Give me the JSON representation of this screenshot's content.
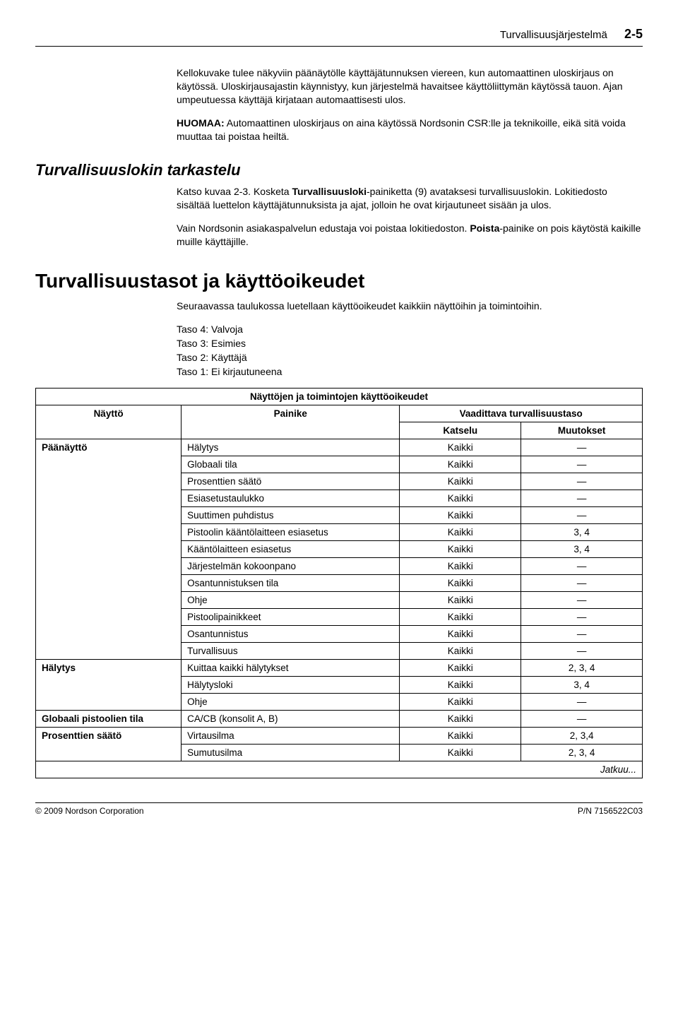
{
  "header": {
    "title": "Turvallisuusjärjestelmä",
    "pagenum": "2-5"
  },
  "intro": {
    "p1": "Kellokuvake tulee näkyviin päänäytölle käyttäjätunnuksen viereen, kun automaattinen uloskirjaus on käytössä. Uloskirjausajastin käynnistyy, kun järjestelmä havaitsee käyttöliittymän käytössä tauon. Ajan umpeutuessa käyttäjä kirjataan automaattisesti ulos.",
    "note_label": "HUOMAA:",
    "note_text": "  Automaattinen uloskirjaus on aina käytössä Nordsonin CSR:lle ja teknikoille, eikä sitä voida muuttaa tai poistaa heiltä."
  },
  "sec_log": {
    "heading": "Turvallisuuslokin tarkastelu",
    "p1a": "Katso kuvaa 2-3.  Kosketa ",
    "p1b": "Turvallisuusloki",
    "p1c": "-painiketta (9) avataksesi turvallisuuslokin. Lokitiedosto sisältää luettelon käyttäjätunnuksista ja ajat, jolloin he ovat kirjautuneet sisään ja ulos.",
    "p2a": "Vain Nordsonin asiakaspalvelun edustaja voi poistaa lokitiedoston. ",
    "p2b": "Poista",
    "p2c": "-painike on pois käytöstä kaikille muille käyttäjille."
  },
  "sec_levels": {
    "heading": "Turvallisuustasot ja käyttöoikeudet",
    "intro": "Seuraavassa taulukossa luetellaan käyttöoikeudet kaikkiin näyttöihin ja toimintoihin.",
    "l4": "Taso 4: Valvoja",
    "l3": "Taso 3: Esimies",
    "l2": "Taso 2: Käyttäjä",
    "l1": "Taso 1: Ei kirjautuneena"
  },
  "table": {
    "title": "Näyttöjen ja toimintojen käyttöoikeudet",
    "group_header": "Vaadittava turvallisuustaso",
    "col_screen": "Näyttö",
    "col_button": "Painike",
    "col_view": "Katselu",
    "col_mod": "Muutokset",
    "rows": [
      {
        "screen": "Päänäyttö",
        "button": "Hälytys",
        "view": "Kaikki",
        "mod": "—"
      },
      {
        "screen": "",
        "button": "Globaali tila",
        "view": "Kaikki",
        "mod": "—"
      },
      {
        "screen": "",
        "button": "Prosenttien säätö",
        "view": "Kaikki",
        "mod": "—"
      },
      {
        "screen": "",
        "button": "Esiasetustaulukko",
        "view": "Kaikki",
        "mod": "—"
      },
      {
        "screen": "",
        "button": "Suuttimen puhdistus",
        "view": "Kaikki",
        "mod": "—"
      },
      {
        "screen": "",
        "button": "Pistoolin kääntölaitteen esiasetus",
        "view": "Kaikki",
        "mod": "3, 4"
      },
      {
        "screen": "",
        "button": "Kääntölaitteen esiasetus",
        "view": "Kaikki",
        "mod": "3, 4"
      },
      {
        "screen": "",
        "button": "Järjestelmän kokoonpano",
        "view": "Kaikki",
        "mod": "—"
      },
      {
        "screen": "",
        "button": "Osantunnistuksen tila",
        "view": "Kaikki",
        "mod": "—"
      },
      {
        "screen": "",
        "button": "Ohje",
        "view": "Kaikki",
        "mod": "—"
      },
      {
        "screen": "",
        "button": "Pistoolipainikkeet",
        "view": "Kaikki",
        "mod": "—"
      },
      {
        "screen": "",
        "button": "Osantunnistus",
        "view": "Kaikki",
        "mod": "—"
      },
      {
        "screen": "",
        "button": "Turvallisuus",
        "view": "Kaikki",
        "mod": "—"
      },
      {
        "screen": "Hälytys",
        "button": "Kuittaa kaikki hälytykset",
        "view": "Kaikki",
        "mod": "2, 3, 4"
      },
      {
        "screen": "",
        "button": "Hälytysloki",
        "view": "Kaikki",
        "mod": "3, 4"
      },
      {
        "screen": "",
        "button": "Ohje",
        "view": "Kaikki",
        "mod": "—"
      },
      {
        "screen": "Globaali pistoolien tila",
        "button": "CA/CB (konsolit A, B)",
        "view": "Kaikki",
        "mod": "—"
      },
      {
        "screen": "Prosenttien säätö",
        "button": "Virtausilma",
        "view": "Kaikki",
        "mod": "2, 3,4"
      },
      {
        "screen": "",
        "button": "Sumutusilma",
        "view": "Kaikki",
        "mod": "2, 3, 4"
      }
    ],
    "continues": "Jatkuu..."
  },
  "footer": {
    "left": "© 2009 Nordson Corporation",
    "right": "P/N 7156522C03"
  }
}
